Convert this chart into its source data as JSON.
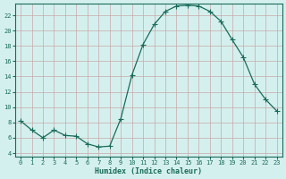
{
  "x": [
    0,
    1,
    2,
    3,
    4,
    5,
    6,
    7,
    8,
    9,
    10,
    11,
    12,
    13,
    14,
    15,
    16,
    17,
    18,
    19,
    20,
    21,
    22,
    23
  ],
  "y": [
    8.2,
    7.0,
    6.0,
    7.0,
    6.3,
    6.2,
    5.2,
    4.8,
    4.9,
    8.5,
    14.2,
    18.2,
    20.8,
    22.5,
    23.2,
    23.3,
    23.2,
    22.5,
    21.2,
    18.8,
    16.5,
    13.0,
    11.0,
    9.5
  ],
  "line_color": "#1a6b5a",
  "marker": "+",
  "marker_size": 4,
  "bg_color": "#d4f0ee",
  "grid_color": "#c8a8a8",
  "xlabel": "Humidex (Indice chaleur)",
  "xlim": [
    -0.5,
    23.5
  ],
  "ylim": [
    3.5,
    23.5
  ],
  "yticks": [
    4,
    6,
    8,
    10,
    12,
    14,
    16,
    18,
    20,
    22
  ],
  "xticks": [
    0,
    1,
    2,
    3,
    4,
    5,
    6,
    7,
    8,
    9,
    10,
    11,
    12,
    13,
    14,
    15,
    16,
    17,
    18,
    19,
    20,
    21,
    22,
    23
  ],
  "tick_fontsize": 5.0,
  "xlabel_fontsize": 6.0
}
